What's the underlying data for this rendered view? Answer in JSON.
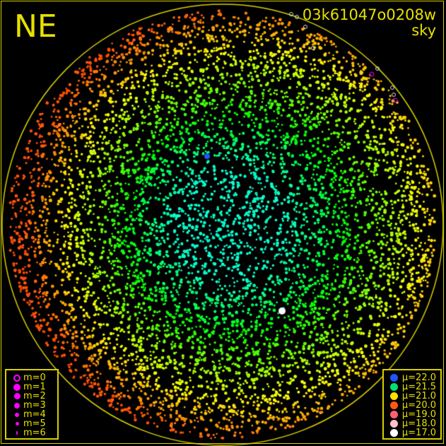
{
  "corner_label": "NE",
  "title": {
    "id": "03k61047o0208w",
    "type": "sky"
  },
  "colors": {
    "frame": "#d8d000",
    "background": "#000000",
    "text": "#e6e000",
    "magnitude_marker": "#ff00ff"
  },
  "magnitude_legend": [
    {
      "label": "m=0",
      "style": "ring"
    },
    {
      "label": "m=1",
      "style": "filled"
    },
    {
      "label": "m=2",
      "style": "filled"
    },
    {
      "label": "m=3",
      "style": "filled"
    },
    {
      "label": "m=4",
      "style": "filled"
    },
    {
      "label": "m=5",
      "style": "filled"
    },
    {
      "label": "m=6",
      "style": "filled"
    }
  ],
  "brightness_legend": [
    {
      "label": "μ=22.0",
      "color": "#1f55ff"
    },
    {
      "label": "μ=21.5",
      "color": "#00e070"
    },
    {
      "label": "μ=21.0",
      "color": "#ffe000"
    },
    {
      "label": "μ=20.0",
      "color": "#ff5a10"
    },
    {
      "label": "μ=19.0",
      "color": "#ff6070"
    },
    {
      "label": "μ=18.0",
      "color": "#ffc0cc"
    },
    {
      "label": "μ=17.0",
      "color": "#ffffff"
    }
  ]
}
